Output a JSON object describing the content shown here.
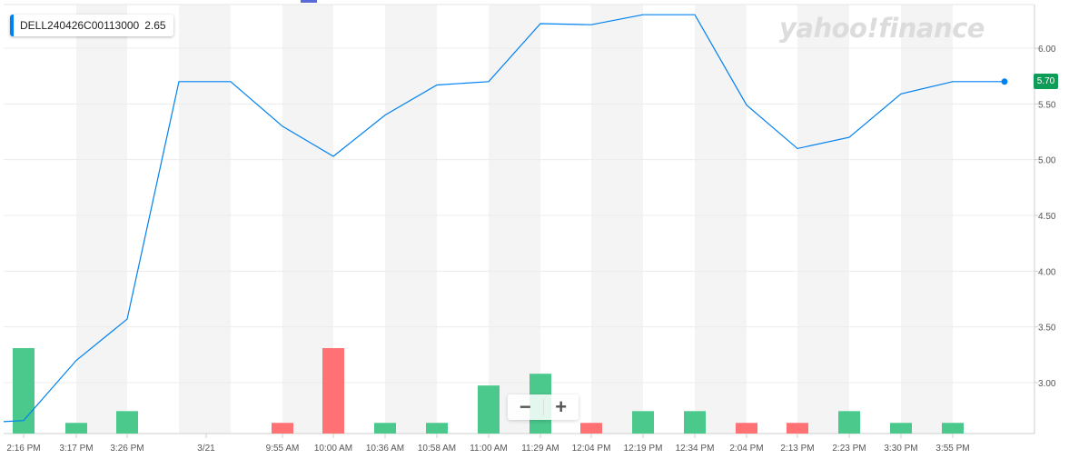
{
  "legend": {
    "symbol": "DELL240426C00113000",
    "value": "2.65"
  },
  "watermark": "yahoo!finance",
  "zoom": {
    "minus_label": "−",
    "plus_label": "+"
  },
  "current_price_label": "5.70",
  "colors": {
    "line": "#0081f2",
    "volume_up": "#4bc88c",
    "volume_down": "#ff7173",
    "price_badge": "#0d9d58",
    "band": "#f4f4f4",
    "grid": "#ececec"
  },
  "chart_data": {
    "type": "line",
    "title": "",
    "xlabel": "",
    "ylabel": "",
    "ylim": [
      2.6,
      6.4
    ],
    "y_ticks": [
      "6.00",
      "5.50",
      "5.00",
      "4.50",
      "4.00",
      "3.50",
      "3.00"
    ],
    "x_tick_labels": [
      "2:16 PM",
      "3:17 PM",
      "3:26 PM",
      "3/21",
      "9:55 AM",
      "10:00 AM",
      "10:36 AM",
      "10:58 AM",
      "11:00 AM",
      "11:29 AM",
      "12:04 PM",
      "12:19 PM",
      "12:34 PM",
      "2:04 PM",
      "2:13 PM",
      "2:23 PM",
      "3:30 PM",
      "3:55 PM"
    ],
    "series": [
      {
        "values": [
          2.65,
          2.66,
          3.2,
          3.57,
          5.7,
          5.7,
          5.3,
          5.03,
          5.4,
          5.67,
          5.7,
          6.22,
          6.21,
          6.3,
          6.3,
          5.49,
          5.1,
          5.2,
          5.59,
          5.7,
          5.7
        ]
      }
    ],
    "volume": {
      "categories": [
        "2:16 PM",
        "3:17 PM",
        "3:26 PM",
        "9:55 AM",
        "10:00 AM",
        "10:36 AM",
        "10:58 AM",
        "11:00 AM",
        "11:29 AM",
        "12:04 PM",
        "12:19 PM",
        "12:34 PM",
        "2:04 PM",
        "2:13 PM",
        "2:23 PM",
        "3:30 PM",
        "3:55 PM"
      ],
      "values": [
        8,
        1,
        2.1,
        1,
        8,
        1,
        1,
        4.5,
        5.6,
        1,
        2.1,
        2.1,
        1,
        1,
        2.1,
        1,
        1
      ],
      "direction": [
        "up",
        "up",
        "up",
        "down",
        "down",
        "up",
        "up",
        "up",
        "up",
        "down",
        "up",
        "up",
        "down",
        "down",
        "up",
        "up",
        "up"
      ]
    },
    "last_value": 5.7,
    "grid": true
  }
}
